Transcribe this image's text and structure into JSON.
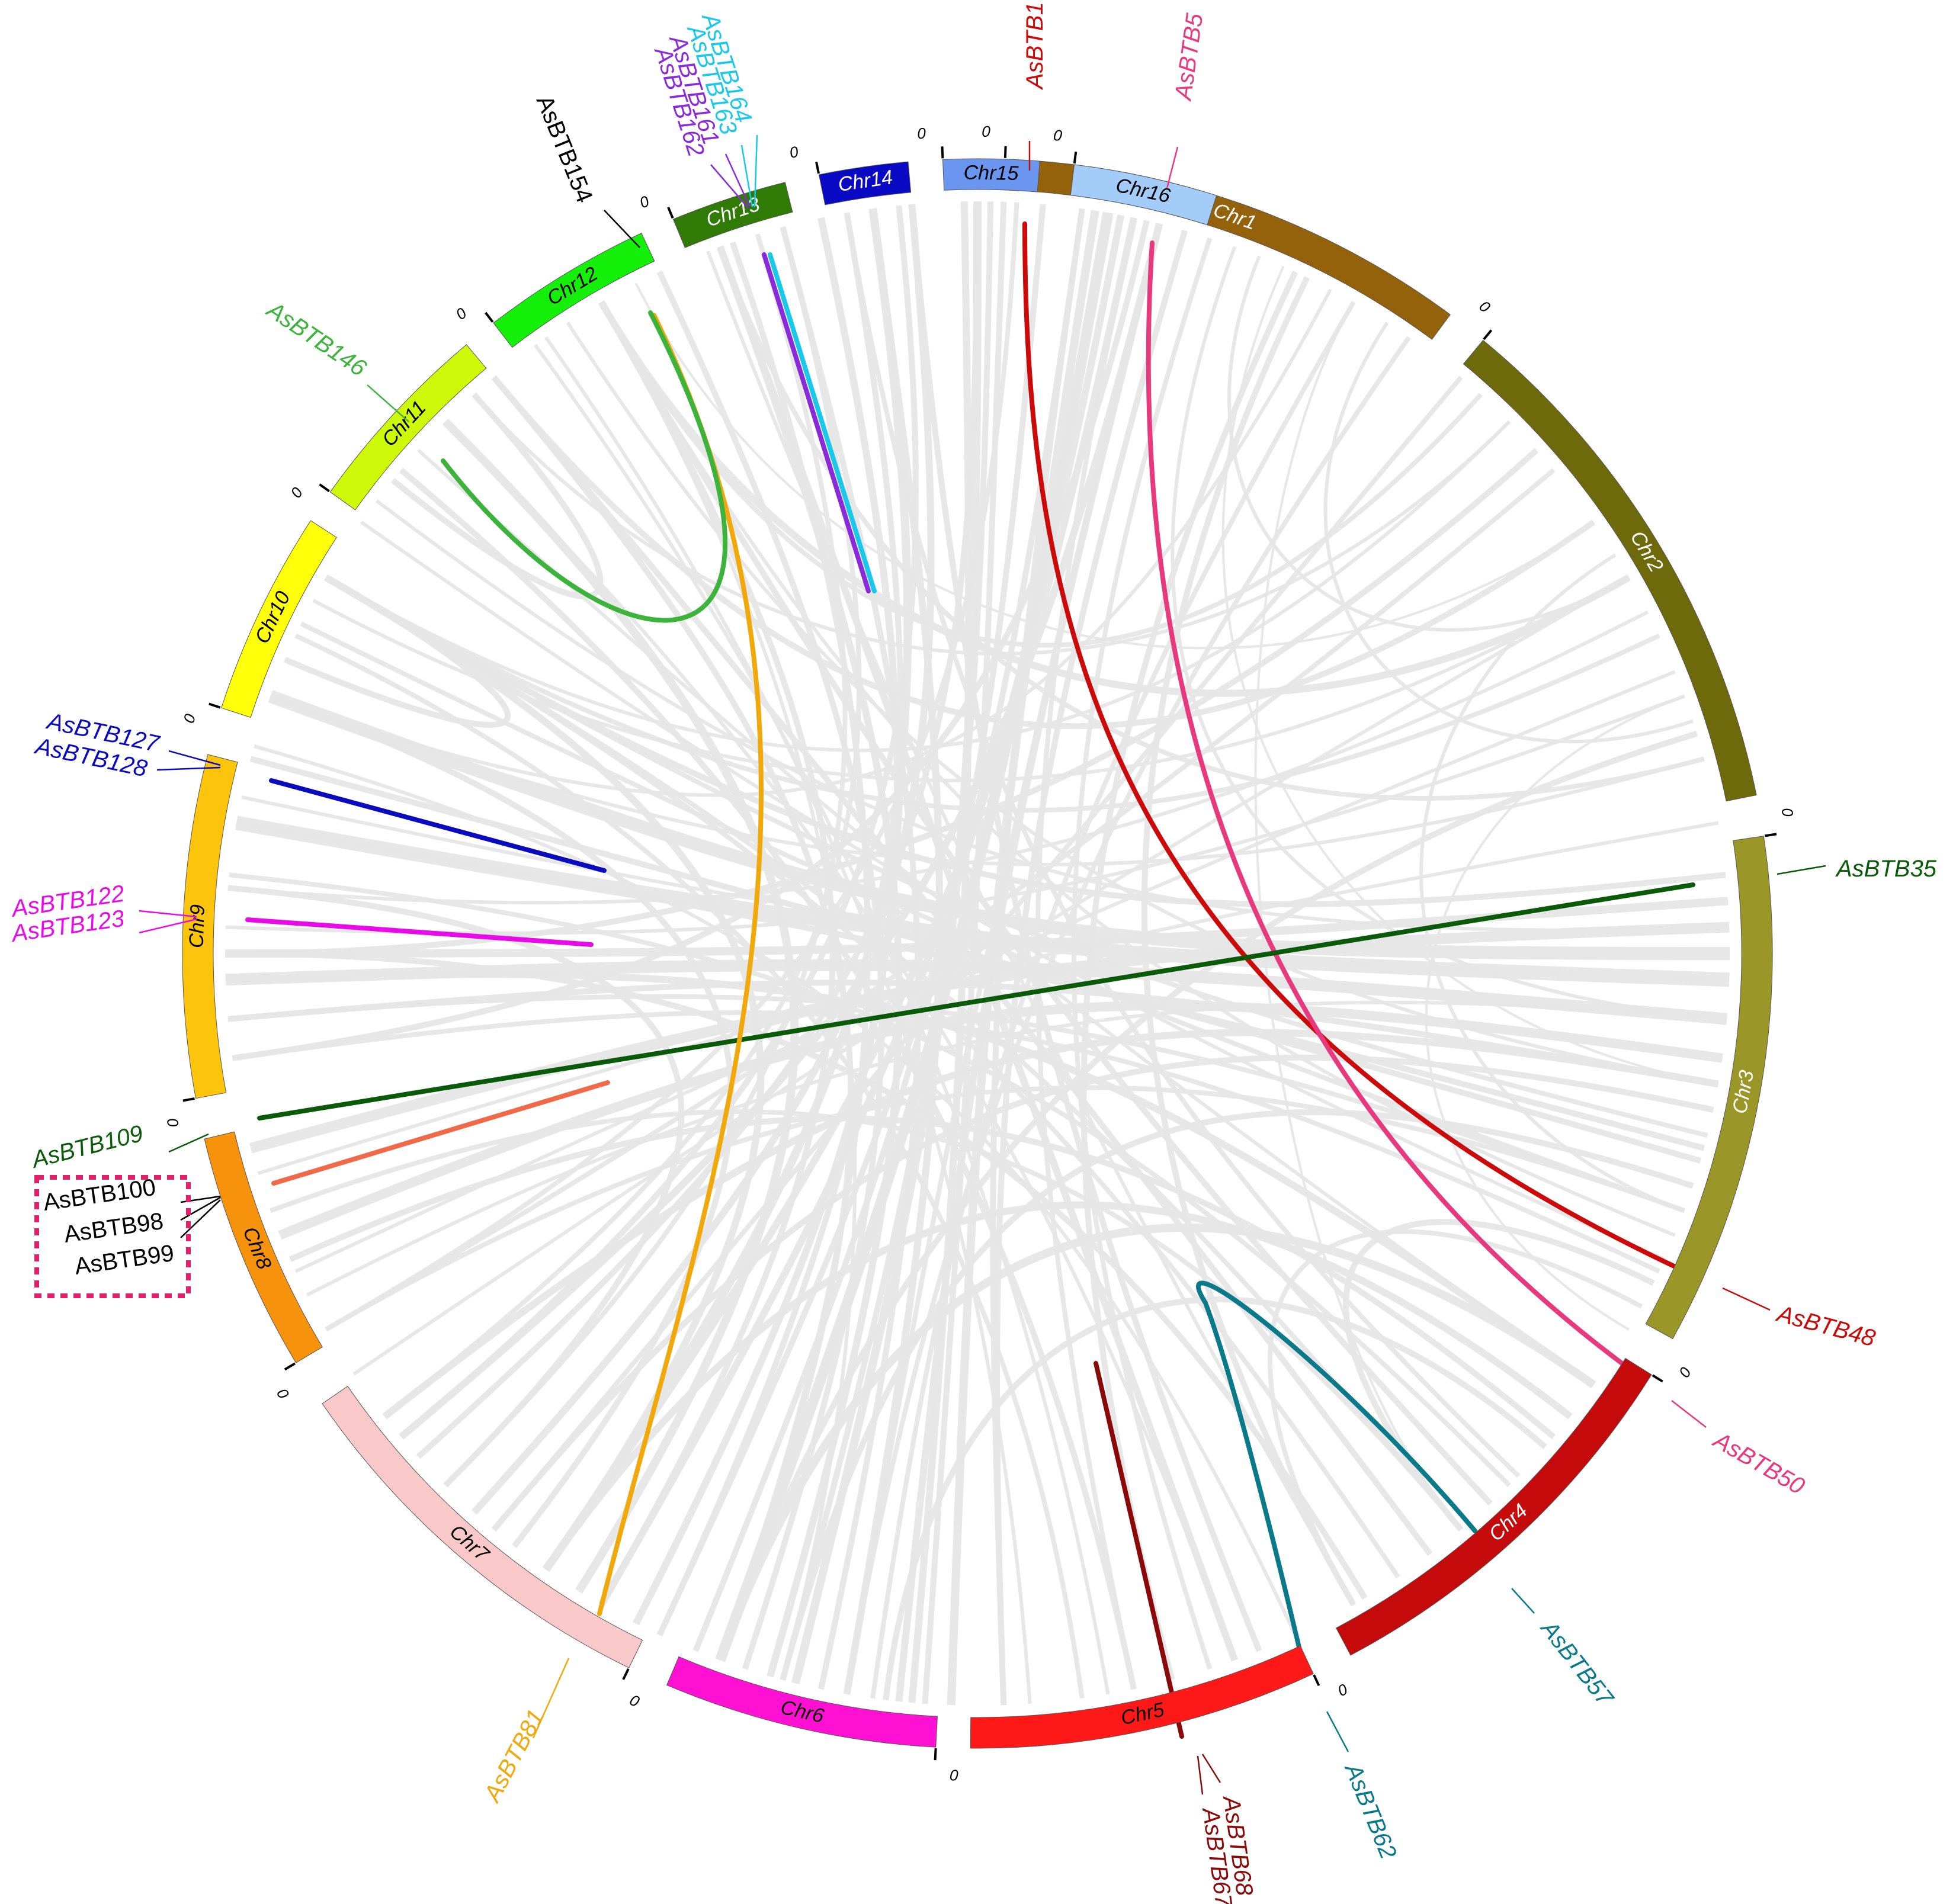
{
  "chromosomes": [
    {
      "name": "Chr1",
      "color": "#94620A",
      "label_color": "#ffffff"
    },
    {
      "name": "Chr2",
      "color": "#6E6A0C",
      "label_color": "#ffffff"
    },
    {
      "name": "Chr3",
      "color": "#9A9628",
      "label_color": "#ffffff"
    },
    {
      "name": "Chr4",
      "color": "#C40A0A",
      "label_color": "#ffffff"
    },
    {
      "name": "Chr5",
      "color": "#FF1818",
      "label_color": "#000000"
    },
    {
      "name": "Chr6",
      "color": "#FF10D2",
      "label_color": "#000000"
    },
    {
      "name": "Chr7",
      "color": "#F9C8C8",
      "label_color": "#000000"
    },
    {
      "name": "Chr8",
      "color": "#F7920C",
      "label_color": "#000000"
    },
    {
      "name": "Chr9",
      "color": "#FCC40A",
      "label_color": "#000000"
    },
    {
      "name": "Chr10",
      "color": "#FFFF0A",
      "label_color": "#000000"
    },
    {
      "name": "Chr11",
      "color": "#CEFA0A",
      "label_color": "#000000"
    },
    {
      "name": "Chr12",
      "color": "#14F00A",
      "label_color": "#000000"
    },
    {
      "name": "Chr13",
      "color": "#307A06",
      "label_color": "#ffffff"
    },
    {
      "name": "Chr14",
      "color": "#0A0AC4",
      "label_color": "#ffffff"
    },
    {
      "name": "Chr15",
      "color": "#6A96F0",
      "label_color": "#000000"
    },
    {
      "name": "Chr16",
      "color": "#A4CCF8",
      "label_color": "#000000"
    }
  ],
  "start_tick_label": "0",
  "background_link_color": "#e6e6e6",
  "gene_labels": [
    {
      "text": "AsBTB1",
      "color": "#CC0A0A"
    },
    {
      "text": "AsBTB5",
      "color": "#E8387E"
    },
    {
      "text": "AsBTB35",
      "color": "#0A5A0A"
    },
    {
      "text": "AsBTB48",
      "color": "#CC0A0A"
    },
    {
      "text": "AsBTB50",
      "color": "#E8387E"
    },
    {
      "text": "AsBTB57",
      "color": "#0A7A8A"
    },
    {
      "text": "AsBTB62",
      "color": "#0A7A8A"
    },
    {
      "text": "AsBTB68",
      "color": "#8A0A0A"
    },
    {
      "text": "AsBTB67",
      "color": "#8A0A0A"
    },
    {
      "text": "AsBTB81",
      "color": "#F0A80A"
    },
    {
      "text": "AsBTB109",
      "color": "#0A5A0A"
    },
    {
      "text": "AsBTB100",
      "color": "#000000"
    },
    {
      "text": "AsBTB98",
      "color": "#000000"
    },
    {
      "text": "AsBTB99",
      "color": "#000000"
    },
    {
      "text": "AsBTB122",
      "color": "#E80AE8"
    },
    {
      "text": "AsBTB123",
      "color": "#E80AE8"
    },
    {
      "text": "AsBTB127",
      "color": "#0A0ABE"
    },
    {
      "text": "AsBTB128",
      "color": "#0A0ABE"
    },
    {
      "text": "AsBTB146",
      "color": "#3CB43C"
    },
    {
      "text": "AsBTB154",
      "color": "#000000"
    },
    {
      "text": "AsBTB162",
      "color": "#8A2ADA"
    },
    {
      "text": "AsBTB161",
      "color": "#8A2ADA"
    },
    {
      "text": "AsBTB163",
      "color": "#1AC8EA"
    },
    {
      "text": "AsBTB164",
      "color": "#1AC8EA"
    }
  ],
  "highlight_links": [
    {
      "color": "#CC0A0A"
    },
    {
      "color": "#E8387E"
    },
    {
      "color": "#0A5A0A"
    },
    {
      "color": "#0A7A8A"
    },
    {
      "color": "#8A0A0A"
    },
    {
      "color": "#F0A80A"
    },
    {
      "color": "#3CB43C"
    },
    {
      "color": "#0A0ABE"
    },
    {
      "color": "#E80AE8"
    },
    {
      "color": "#F06A4A"
    },
    {
      "color": "#8A2ADA"
    },
    {
      "color": "#1AC8EA"
    }
  ],
  "highlight_box_color": "#E0206A"
}
